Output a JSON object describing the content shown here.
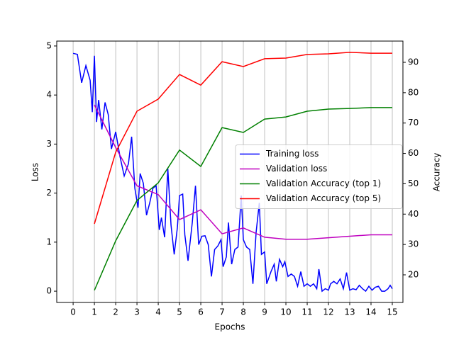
{
  "chart_data": {
    "type": "line",
    "xlabel": "Epochs",
    "ylabel": "Loss",
    "y2label": "Accuracy",
    "xlim": [
      -0.77,
      15.5
    ],
    "ylim": [
      -0.23,
      5.1
    ],
    "y2lim": [
      10.9,
      97.0
    ],
    "xticks": [
      0,
      1,
      2,
      3,
      4,
      5,
      6,
      7,
      8,
      9,
      10,
      11,
      12,
      13,
      14,
      15
    ],
    "yticks": [
      0,
      1,
      2,
      3,
      4,
      5
    ],
    "y2ticks": [
      20,
      30,
      40,
      50,
      60,
      70,
      80,
      90
    ],
    "grid": "x",
    "legend": "center right",
    "series": [
      {
        "name": "Training loss",
        "color": "#0000ff",
        "axis": "y",
        "x": [
          0,
          0.2,
          0.4,
          0.6,
          0.8,
          0.9,
          1.0,
          1.1,
          1.2,
          1.35,
          1.5,
          1.65,
          1.8,
          2.0,
          2.2,
          2.4,
          2.6,
          2.75,
          2.9,
          3.05,
          3.15,
          3.3,
          3.45,
          3.6,
          3.75,
          3.9,
          4.05,
          4.15,
          4.3,
          4.45,
          4.6,
          4.75,
          4.9,
          5.0,
          5.15,
          5.25,
          5.4,
          5.6,
          5.75,
          5.9,
          6.05,
          6.2,
          6.35,
          6.5,
          6.65,
          6.8,
          6.95,
          7.05,
          7.2,
          7.3,
          7.45,
          7.6,
          7.75,
          7.9,
          8.0,
          8.15,
          8.3,
          8.45,
          8.6,
          8.75,
          8.85,
          9.0,
          9.1,
          9.3,
          9.45,
          9.55,
          9.7,
          9.85,
          9.95,
          10.1,
          10.25,
          10.4,
          10.55,
          10.7,
          10.85,
          11.0,
          11.15,
          11.3,
          11.45,
          11.55,
          11.7,
          11.85,
          12.0,
          12.1,
          12.25,
          12.4,
          12.55,
          12.7,
          12.85,
          13.0,
          13.15,
          13.3,
          13.45,
          13.6,
          13.75,
          13.9,
          14.05,
          14.2,
          14.35,
          14.5,
          14.65,
          14.8,
          14.9,
          15.0
        ],
        "values": [
          4.85,
          4.83,
          4.25,
          4.6,
          4.3,
          3.65,
          4.8,
          3.45,
          3.9,
          3.3,
          3.85,
          3.6,
          2.9,
          3.25,
          2.75,
          2.35,
          2.6,
          3.15,
          2.1,
          1.7,
          2.4,
          2.2,
          1.55,
          1.8,
          2.1,
          2.15,
          1.25,
          1.5,
          1.1,
          2.5,
          1.35,
          0.75,
          1.3,
          1.95,
          1.98,
          1.15,
          0.62,
          1.4,
          2.15,
          0.95,
          1.12,
          1.13,
          0.95,
          0.3,
          0.85,
          0.92,
          1.05,
          0.5,
          0.7,
          1.4,
          0.55,
          0.85,
          0.9,
          1.95,
          1.05,
          0.9,
          0.85,
          0.15,
          1.2,
          1.8,
          0.75,
          0.8,
          0.15,
          0.4,
          0.55,
          0.2,
          0.65,
          0.5,
          0.6,
          0.3,
          0.35,
          0.3,
          0.1,
          0.4,
          0.1,
          0.15,
          0.1,
          0.15,
          0.05,
          0.45,
          0.0,
          0.05,
          0.02,
          0.15,
          0.2,
          0.15,
          0.25,
          0.05,
          0.38,
          0.02,
          0.05,
          0.03,
          0.12,
          0.05,
          0.0,
          0.1,
          0.02,
          0.08,
          0.1,
          0.0,
          0.0,
          0.05,
          0.12,
          0.05
        ]
      },
      {
        "name": "Validation loss",
        "color": "#bf00bf",
        "axis": "y",
        "x": [
          1,
          2,
          3,
          4,
          5,
          6,
          7,
          8,
          9,
          10,
          11,
          12,
          13,
          14,
          15
        ],
        "values": [
          3.8,
          2.93,
          2.15,
          1.97,
          1.46,
          1.66,
          1.17,
          1.29,
          1.1,
          1.06,
          1.06,
          1.09,
          1.12,
          1.15,
          1.15
        ]
      },
      {
        "name": "Validation Accuracy (top 1)",
        "color": "#008000",
        "axis": "y2",
        "x": [
          1,
          2,
          3,
          4,
          5,
          6,
          7,
          8,
          9,
          10,
          11,
          12,
          13,
          14,
          15
        ],
        "values": [
          14.9,
          31.2,
          44.5,
          50.3,
          61.1,
          55.7,
          68.5,
          66.9,
          71.3,
          72.0,
          73.9,
          74.6,
          74.8,
          75.1,
          75.1
        ]
      },
      {
        "name": "Validation Accuracy (top 5)",
        "color": "#ff0000",
        "axis": "y2",
        "x": [
          1,
          2,
          3,
          4,
          5,
          6,
          7,
          8,
          9,
          10,
          11,
          12,
          13,
          14,
          15
        ],
        "values": [
          36.8,
          60.4,
          73.9,
          77.9,
          86.0,
          82.5,
          90.2,
          88.6,
          91.2,
          91.4,
          92.6,
          92.8,
          93.3,
          93.0,
          93.0
        ]
      }
    ]
  }
}
